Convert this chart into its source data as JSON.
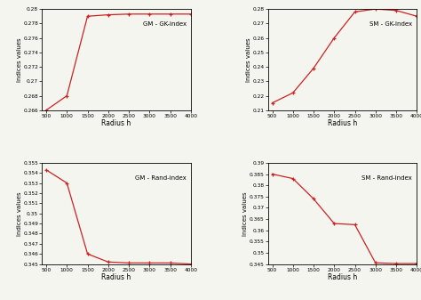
{
  "gm_gk": {
    "title": "GM - GK-index",
    "x": [
      500,
      1000,
      1500,
      2000,
      2500,
      3000,
      3500,
      4000
    ],
    "y": [
      0.266,
      0.268,
      0.279,
      0.2792,
      0.2793,
      0.2793,
      0.2793,
      0.2793
    ],
    "ylim": [
      0.266,
      0.28
    ],
    "yticks": [
      0.266,
      0.268,
      0.27,
      0.272,
      0.274,
      0.276,
      0.278,
      0.28
    ]
  },
  "sm_gk": {
    "title": "SM - GK-Index",
    "x": [
      500,
      1000,
      1500,
      2000,
      2500,
      3000,
      3500,
      4000
    ],
    "y": [
      0.215,
      0.222,
      0.239,
      0.26,
      0.278,
      0.28,
      0.279,
      0.275
    ],
    "ylim": [
      0.21,
      0.28
    ],
    "yticks": [
      0.21,
      0.22,
      0.23,
      0.24,
      0.25,
      0.26,
      0.27,
      0.28
    ]
  },
  "gm_rand": {
    "title": "GM - Rand-index",
    "x": [
      500,
      1000,
      1500,
      2000,
      2500,
      3000,
      3500,
      4000
    ],
    "y": [
      0.3543,
      0.353,
      0.346,
      0.3452,
      0.3451,
      0.3451,
      0.3451,
      0.345
    ],
    "ylim": [
      0.345,
      0.355
    ],
    "yticks": [
      0.345,
      0.346,
      0.347,
      0.348,
      0.349,
      0.35,
      0.351,
      0.352,
      0.353,
      0.354,
      0.355
    ]
  },
  "sm_rand": {
    "title": "SM - Rand-index",
    "x": [
      500,
      1000,
      1500,
      2000,
      2500,
      3000,
      3500,
      4000
    ],
    "y": [
      0.385,
      0.383,
      0.374,
      0.363,
      0.3625,
      0.3455,
      0.3452,
      0.3452
    ],
    "ylim": [
      0.345,
      0.39
    ],
    "yticks": [
      0.345,
      0.35,
      0.355,
      0.36,
      0.365,
      0.37,
      0.375,
      0.38,
      0.385,
      0.39
    ]
  },
  "color": "#cc2222",
  "xlabel": "Radius h",
  "ylabel": "Indices values",
  "marker": "+",
  "bg_color": "#f5f5f0",
  "xticks": [
    500,
    1000,
    1500,
    2000,
    2500,
    3000,
    3500,
    4000
  ],
  "xlim": [
    400,
    4000
  ]
}
